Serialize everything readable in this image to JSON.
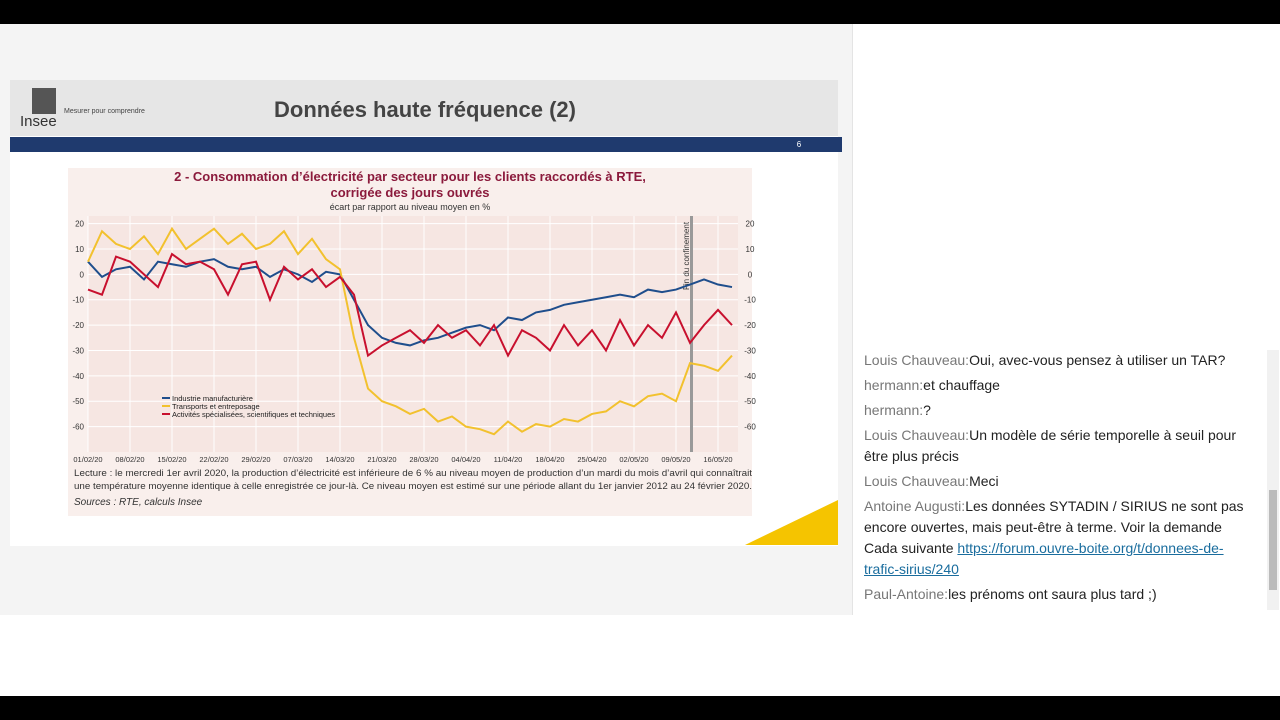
{
  "slide": {
    "logo": "Insee",
    "tagline": "Mesurer pour comprendre",
    "heading": "Données haute fréquence (2)",
    "page_number": "6"
  },
  "chart_data": {
    "type": "line",
    "title": [
      "2 - Consommation d’électricité par secteur pour les clients raccordés à RTE,",
      "corrigée des jours ouvrés"
    ],
    "subtitle": "écart par rapport au niveau moyen en %",
    "categories": [
      "01/02/20",
      null,
      null,
      "08/02/20",
      null,
      null,
      "15/02/20",
      null,
      null,
      "22/02/20",
      null,
      null,
      "29/02/20",
      null,
      null,
      "07/03/20",
      null,
      null,
      "14/03/20",
      null,
      null,
      "21/03/20",
      null,
      null,
      "28/03/20",
      null,
      null,
      "04/04/20",
      null,
      null,
      "11/04/20",
      null,
      null,
      "18/04/20",
      null,
      null,
      "25/04/20",
      null,
      null,
      "02/05/20",
      null,
      null,
      "09/05/20",
      null,
      null,
      "16/05/20",
      null
    ],
    "series": [
      {
        "name": "Industrie manufacturière",
        "color": "#1f4e8c",
        "values": [
          5,
          -1,
          2,
          3,
          -2,
          5,
          4,
          3,
          5,
          6,
          3,
          2,
          3,
          -1,
          2,
          0,
          -3,
          1,
          0,
          -10,
          -20,
          -25,
          -27,
          -28,
          -26,
          -25,
          -23,
          -21,
          -20,
          -22,
          -17,
          -18,
          -15,
          -14,
          -12,
          -11,
          -10,
          -9,
          -8,
          -9,
          -6,
          -7,
          -6,
          -4,
          -2,
          -4,
          -5
        ]
      },
      {
        "name": "Transports et entreposage",
        "color": "#f2c12e",
        "values": [
          5,
          17,
          12,
          10,
          15,
          8,
          18,
          10,
          14,
          18,
          12,
          16,
          10,
          12,
          17,
          8,
          14,
          6,
          2,
          -25,
          -45,
          -50,
          -52,
          -55,
          -53,
          -58,
          -56,
          -60,
          -61,
          -63,
          -58,
          -62,
          -59,
          -60,
          -57,
          -58,
          -55,
          -54,
          -50,
          -52,
          -48,
          -47,
          -50,
          -35,
          -36,
          -38,
          -32
        ]
      },
      {
        "name": "Activités spécialisées, scientifiques et techniques",
        "color": "#c8102e",
        "values": [
          -6,
          -8,
          7,
          5,
          0,
          -5,
          8,
          4,
          5,
          2,
          -8,
          4,
          5,
          -10,
          3,
          -2,
          2,
          -5,
          -1,
          -8,
          -32,
          -28,
          -25,
          -22,
          -27,
          -20,
          -25,
          -22,
          -28,
          -20,
          -32,
          -22,
          -25,
          -30,
          -20,
          -28,
          -22,
          -30,
          -18,
          -28,
          -20,
          -25,
          -15,
          -27,
          -20,
          -14,
          -20
        ]
      }
    ],
    "ylim": [
      -70,
      23
    ],
    "yticks": [
      20,
      10,
      0,
      -10,
      -20,
      -30,
      -40,
      -50,
      -60
    ],
    "grid": true,
    "annotation": "Fin du confinement",
    "note_lines": [
      "Lecture : le mercredi 1er avril 2020, la production d’électricité est inférieure de 6 % au niveau moyen de production d’un mardi du mois d’avril qui connaîtrait",
      "une température moyenne identique à celle enregistrée ce jour-là. Ce niveau moyen est estimé sur une période allant du 1er janvier 2012 au 24 février 2020."
    ],
    "source": "Sources :  RTE, calculs Insee"
  },
  "chat": [
    {
      "author": "Louis Chauveau:",
      "text": "Oui, avec-vous pensez à utiliser un TAR?"
    },
    {
      "author": "hermann:",
      "text": "et chauffage"
    },
    {
      "author": "hermann:",
      "text": "?"
    },
    {
      "author": "Louis Chauveau:",
      "text": "Un modèle de série temporelle à seuil pour être plus précis"
    },
    {
      "author": "Louis Chauveau:",
      "text": "Meci"
    },
    {
      "author": "Antoine Augusti:",
      "text": "Les données SYTADIN / SIRIUS ne sont pas encore ouvertes, mais peut-être à terme. Voir la demande Cada suivante ",
      "link": "https://forum.ouvre-boite.org/t/donnees-de-trafic-sirius/240"
    },
    {
      "author": "Paul-Antoine:",
      "text": "les prénoms ont saura plus tard ;)"
    }
  ]
}
